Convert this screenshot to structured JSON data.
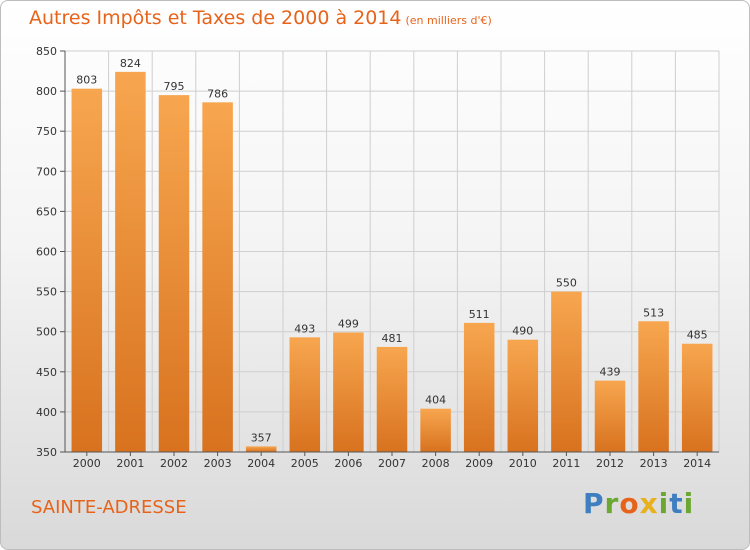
{
  "title": "Autres Impôts et Taxes de 2000 à 2014",
  "subtitle": "(en milliers d'€)",
  "commune": "SAINTE-ADRESSE",
  "logo": {
    "text": "Proxiti",
    "letters": [
      {
        "ch": "P",
        "color": "#3f7fc1"
      },
      {
        "ch": "r",
        "color": "#6aa832"
      },
      {
        "ch": "o",
        "color": "#e8631a"
      },
      {
        "ch": "x",
        "color": "#e8b01a"
      },
      {
        "ch": "i",
        "color": "#6aa832"
      },
      {
        "ch": "t",
        "color": "#3f7fc1"
      },
      {
        "ch": "i",
        "color": "#6aa832"
      }
    ]
  },
  "colors": {
    "accent": "#e8631a",
    "bar_light": "#f7a64f",
    "bar_dark": "#d8721f",
    "grid": "#cfcfcf"
  },
  "chart_data": {
    "type": "bar",
    "title": "Autres Impôts et Taxes de 2000 à 2014",
    "subtitle": "(en milliers d'€)",
    "xlabel": "",
    "ylabel": "",
    "categories": [
      "2000",
      "2001",
      "2002",
      "2003",
      "2004",
      "2005",
      "2006",
      "2007",
      "2008",
      "2009",
      "2010",
      "2011",
      "2012",
      "2013",
      "2014"
    ],
    "values": [
      803,
      824,
      795,
      786,
      357,
      493,
      499,
      481,
      404,
      511,
      490,
      550,
      439,
      513,
      485
    ],
    "ylim": [
      350,
      850
    ],
    "yticks": [
      350,
      400,
      450,
      500,
      550,
      600,
      650,
      700,
      750,
      800,
      850
    ],
    "grid": true,
    "data_labels": true
  }
}
